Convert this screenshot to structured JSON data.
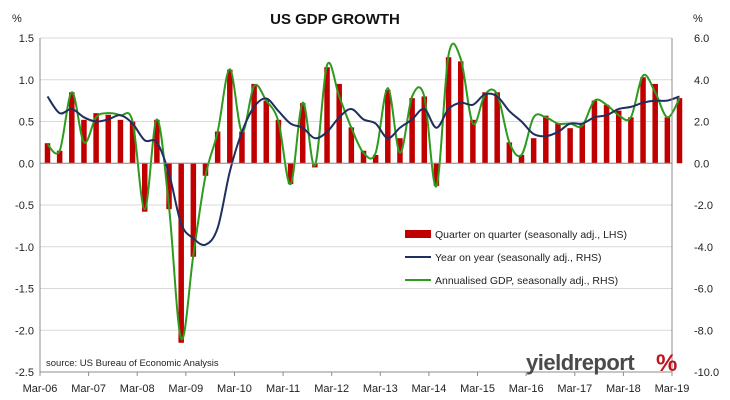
{
  "chart_data": {
    "type": "bar",
    "title": "US GDP GROWTH",
    "left_unit_label": "%",
    "right_unit_label": "%",
    "source": "source: US Bureau of Economic Analysis",
    "brand": {
      "text": "yieldreport",
      "symbol": "%"
    },
    "y_left": {
      "lim": [
        -2.5,
        1.5
      ],
      "ticks": [
        "1.5",
        "1.0",
        "0.5",
        "0.0",
        "-0.5",
        "-1.0",
        "-1.5",
        "-2.0",
        "-2.5"
      ]
    },
    "y_right": {
      "lim": [
        -10.0,
        6.0
      ],
      "ticks": [
        "6.0",
        "4.0",
        "2.0",
        "0.0",
        "-2.0",
        "-4.0",
        "-6.0",
        "-8.0",
        "-10.0"
      ]
    },
    "x_ticks": [
      "Mar-06",
      "Mar-07",
      "Mar-08",
      "Mar-09",
      "Mar-10",
      "Mar-11",
      "Mar-12",
      "Mar-13",
      "Mar-14",
      "Mar-15",
      "Mar-16",
      "Mar-17",
      "Mar-18",
      "Mar-19"
    ],
    "categories": [
      "Mar-06",
      "Jun-06",
      "Sep-06",
      "Dec-06",
      "Mar-07",
      "Jun-07",
      "Sep-07",
      "Dec-07",
      "Mar-08",
      "Jun-08",
      "Sep-08",
      "Dec-08",
      "Mar-09",
      "Jun-09",
      "Sep-09",
      "Dec-09",
      "Mar-10",
      "Jun-10",
      "Sep-10",
      "Dec-10",
      "Mar-11",
      "Jun-11",
      "Sep-11",
      "Dec-11",
      "Mar-12",
      "Jun-12",
      "Sep-12",
      "Dec-12",
      "Mar-13",
      "Jun-13",
      "Sep-13",
      "Dec-13",
      "Mar-14",
      "Jun-14",
      "Sep-14",
      "Dec-14",
      "Mar-15",
      "Jun-15",
      "Sep-15",
      "Dec-15",
      "Mar-16",
      "Jun-16",
      "Sep-16",
      "Dec-16",
      "Mar-17",
      "Jun-17",
      "Sep-17",
      "Dec-17",
      "Mar-18",
      "Jun-18",
      "Sep-18",
      "Dec-18",
      "Mar-19"
    ],
    "series": [
      {
        "name": "Quarter on quarter (seasonally adj., LHS)",
        "type": "bar",
        "axis": "left",
        "color": "#c00000",
        "values": [
          0.24,
          0.15,
          0.85,
          0.52,
          0.6,
          0.58,
          0.52,
          0.5,
          -0.58,
          0.52,
          -0.55,
          -2.15,
          -1.12,
          -0.15,
          0.38,
          1.12,
          0.38,
          0.95,
          0.75,
          0.52,
          -0.25,
          0.72,
          -0.05,
          1.15,
          0.95,
          0.43,
          0.15,
          0.1,
          0.88,
          0.3,
          0.78,
          0.8,
          -0.27,
          1.27,
          1.22,
          0.52,
          0.85,
          0.85,
          0.25,
          0.1,
          0.3,
          0.57,
          0.48,
          0.42,
          0.48,
          0.75,
          0.7,
          0.63,
          0.55,
          1.03,
          0.95,
          0.55,
          0.78
        ]
      },
      {
        "name": "Year on year (seasonally adj., RHS)",
        "type": "line",
        "axis": "right",
        "color": "#1f2f5f",
        "values": [
          3.2,
          2.4,
          2.6,
          2.2,
          2.0,
          2.1,
          2.3,
          1.9,
          1.1,
          1.0,
          -0.5,
          -2.9,
          -3.6,
          -3.9,
          -3.1,
          -0.4,
          1.5,
          2.7,
          3.1,
          2.5,
          1.9,
          1.7,
          1.2,
          1.5,
          2.2,
          2.6,
          2.1,
          1.9,
          1.2,
          1.7,
          2.1,
          2.6,
          1.7,
          2.6,
          2.9,
          2.8,
          3.3,
          3.2,
          2.5,
          2.0,
          1.4,
          1.3,
          1.5,
          1.9,
          1.9,
          2.2,
          2.3,
          2.6,
          2.7,
          2.9,
          3.0,
          3.0,
          3.2
        ]
      },
      {
        "name": "Annualised GDP, seasonally adj., RHS)",
        "type": "line",
        "axis": "right",
        "color": "#2e9a1e",
        "values": [
          0.9,
          0.6,
          3.4,
          1.0,
          2.2,
          2.4,
          2.3,
          2.0,
          -2.2,
          2.1,
          -2.1,
          -8.4,
          -4.4,
          -0.6,
          1.5,
          4.5,
          1.5,
          3.7,
          3.0,
          2.0,
          -1.0,
          2.9,
          -0.1,
          4.7,
          3.2,
          1.7,
          0.5,
          0.5,
          3.6,
          0.5,
          3.2,
          3.2,
          -1.1,
          5.2,
          5.0,
          1.9,
          3.3,
          3.3,
          1.0,
          0.4,
          2.2,
          2.2,
          1.9,
          1.9,
          1.8,
          3.0,
          2.8,
          2.3,
          2.2,
          4.2,
          3.4,
          2.2,
          3.1
        ]
      }
    ],
    "legend": {
      "placement": "right-middle"
    }
  }
}
